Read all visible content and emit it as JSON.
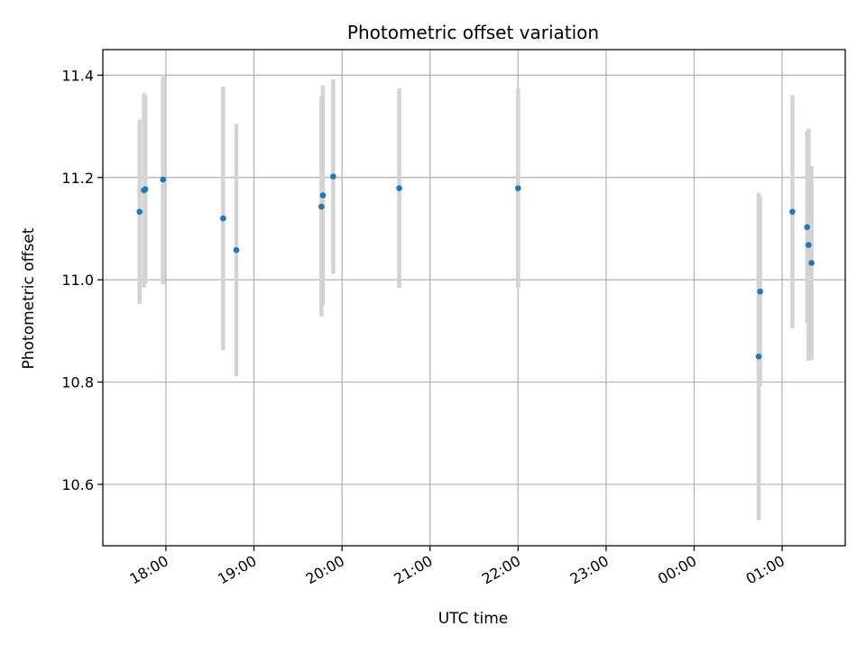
{
  "chart_data": {
    "type": "scatter",
    "title": "Photometric offset variation",
    "xlabel": "UTC time",
    "ylabel": "Photometric offset",
    "x_axis_type": "time",
    "xlim": [
      "17:17",
      "01:43"
    ],
    "ylim": [
      10.48,
      11.45
    ],
    "xticks": [
      {
        "label": "18:00",
        "time": "18:00"
      },
      {
        "label": "19:00",
        "time": "19:00"
      },
      {
        "label": "20:00",
        "time": "20:00"
      },
      {
        "label": "21:00",
        "time": "21:00"
      },
      {
        "label": "22:00",
        "time": "22:00"
      },
      {
        "label": "23:00",
        "time": "23:00"
      },
      {
        "label": "00:00",
        "time": "00:00"
      },
      {
        "label": "01:00",
        "time": "01:00"
      }
    ],
    "yticks": [
      10.6,
      10.8,
      11.0,
      11.2,
      11.4
    ],
    "grid": true,
    "marker_color": "#1f77b4",
    "errorbar_color": "#d3d3d3",
    "points": [
      {
        "time": "17:42",
        "y": 11.133,
        "err": 0.18
      },
      {
        "time": "17:45",
        "y": 11.175,
        "err": 0.19
      },
      {
        "time": "17:46",
        "y": 11.177,
        "err": 0.185
      },
      {
        "time": "17:58",
        "y": 11.196,
        "err": 0.205
      },
      {
        "time": "18:39",
        "y": 11.12,
        "err": 0.258
      },
      {
        "time": "18:48",
        "y": 11.058,
        "err": 0.247
      },
      {
        "time": "19:46",
        "y": 11.143,
        "err": 0.215
      },
      {
        "time": "19:47",
        "y": 11.165,
        "err": 0.215
      },
      {
        "time": "19:54",
        "y": 11.202,
        "err": 0.19
      },
      {
        "time": "20:39",
        "y": 11.179,
        "err": 0.195
      },
      {
        "time": "22:00",
        "y": 11.179,
        "err": 0.195
      },
      {
        "time": "00:44",
        "y": 10.85,
        "err": 0.32
      },
      {
        "time": "00:45",
        "y": 10.977,
        "err": 0.185
      },
      {
        "time": "01:07",
        "y": 11.133,
        "err": 0.228
      },
      {
        "time": "01:17",
        "y": 11.103,
        "err": 0.188
      },
      {
        "time": "01:18",
        "y": 11.068,
        "err": 0.227
      },
      {
        "time": "01:20",
        "y": 11.033,
        "err": 0.19
      }
    ]
  }
}
